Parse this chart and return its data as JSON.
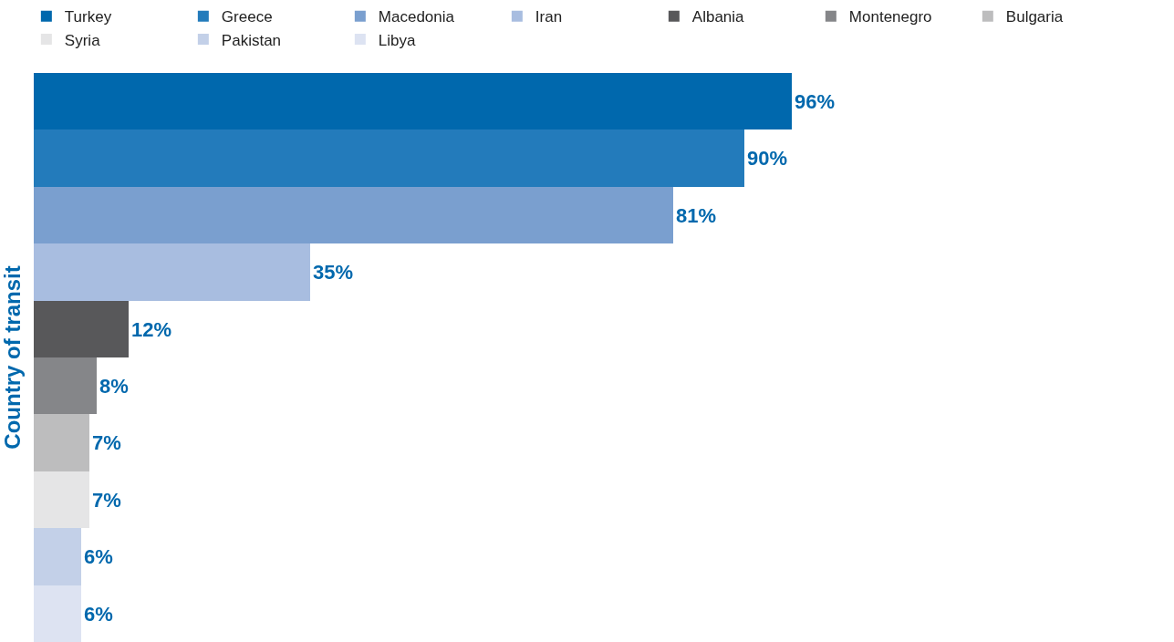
{
  "chart_data": {
    "type": "bar",
    "orientation": "horizontal",
    "stacked": true,
    "ylabel": "Country of transit",
    "legend": "top",
    "categories": [
      null,
      null,
      null,
      null,
      null,
      null,
      null,
      null,
      null,
      null
    ],
    "series": [
      {
        "name": "Turkey",
        "color": "#0068ad",
        "values": [
          96,
          null,
          null,
          null,
          null,
          null,
          null,
          null,
          null,
          null
        ],
        "value_labels": [
          "96%",
          null,
          null,
          null,
          null,
          null,
          null,
          null,
          null,
          null
        ]
      },
      {
        "name": "Greece",
        "color": "#237bbb",
        "values": [
          null,
          90,
          null,
          null,
          null,
          null,
          null,
          null,
          null,
          null
        ],
        "value_labels": [
          null,
          "90%",
          null,
          null,
          null,
          null,
          null,
          null,
          null,
          null
        ]
      },
      {
        "name": "Macedonia",
        "color": "#7a9fcf",
        "values": [
          null,
          null,
          81,
          null,
          null,
          null,
          null,
          null,
          null,
          null
        ],
        "value_labels": [
          null,
          null,
          "81%",
          null,
          null,
          null,
          null,
          null,
          null,
          null
        ]
      },
      {
        "name": "Iran",
        "color": "#a8bde0",
        "values": [
          null,
          null,
          null,
          35,
          null,
          null,
          null,
          null,
          null,
          null
        ],
        "value_labels": [
          null,
          null,
          null,
          "35%",
          null,
          null,
          null,
          null,
          null,
          null
        ]
      },
      {
        "name": "Albania",
        "color": "#58585a",
        "values": [
          null,
          null,
          null,
          null,
          12,
          null,
          null,
          null,
          null,
          null
        ],
        "value_labels": [
          null,
          null,
          null,
          null,
          "12%",
          null,
          null,
          null,
          null,
          null
        ]
      },
      {
        "name": "Montenegro",
        "color": "#858689",
        "values": [
          null,
          null,
          null,
          null,
          null,
          8,
          null,
          null,
          null,
          null
        ],
        "value_labels": [
          null,
          null,
          null,
          null,
          null,
          "8%",
          null,
          null,
          null,
          null
        ]
      },
      {
        "name": "Bulgaria",
        "color": "#bdbdbe",
        "values": [
          null,
          null,
          null,
          null,
          null,
          null,
          7,
          null,
          null,
          null
        ],
        "value_labels": [
          null,
          null,
          null,
          null,
          null,
          null,
          "7%",
          null,
          null,
          null
        ]
      },
      {
        "name": "Syria",
        "color": "#e5e5e6",
        "values": [
          null,
          null,
          null,
          null,
          null,
          null,
          null,
          7,
          null,
          null
        ],
        "value_labels": [
          null,
          null,
          null,
          null,
          null,
          null,
          null,
          "7%",
          null,
          null
        ]
      },
      {
        "name": "Pakistan",
        "color": "#c3d0e8",
        "values": [
          null,
          null,
          null,
          null,
          null,
          null,
          null,
          null,
          6,
          null
        ],
        "value_labels": [
          null,
          null,
          null,
          null,
          null,
          null,
          null,
          null,
          "6%",
          null
        ]
      },
      {
        "name": "Libya",
        "color": "#dde3f2",
        "values": [
          null,
          null,
          null,
          null,
          null,
          null,
          null,
          null,
          null,
          6
        ],
        "value_labels": [
          null,
          null,
          null,
          null,
          null,
          null,
          null,
          null,
          null,
          "6%"
        ]
      }
    ]
  }
}
